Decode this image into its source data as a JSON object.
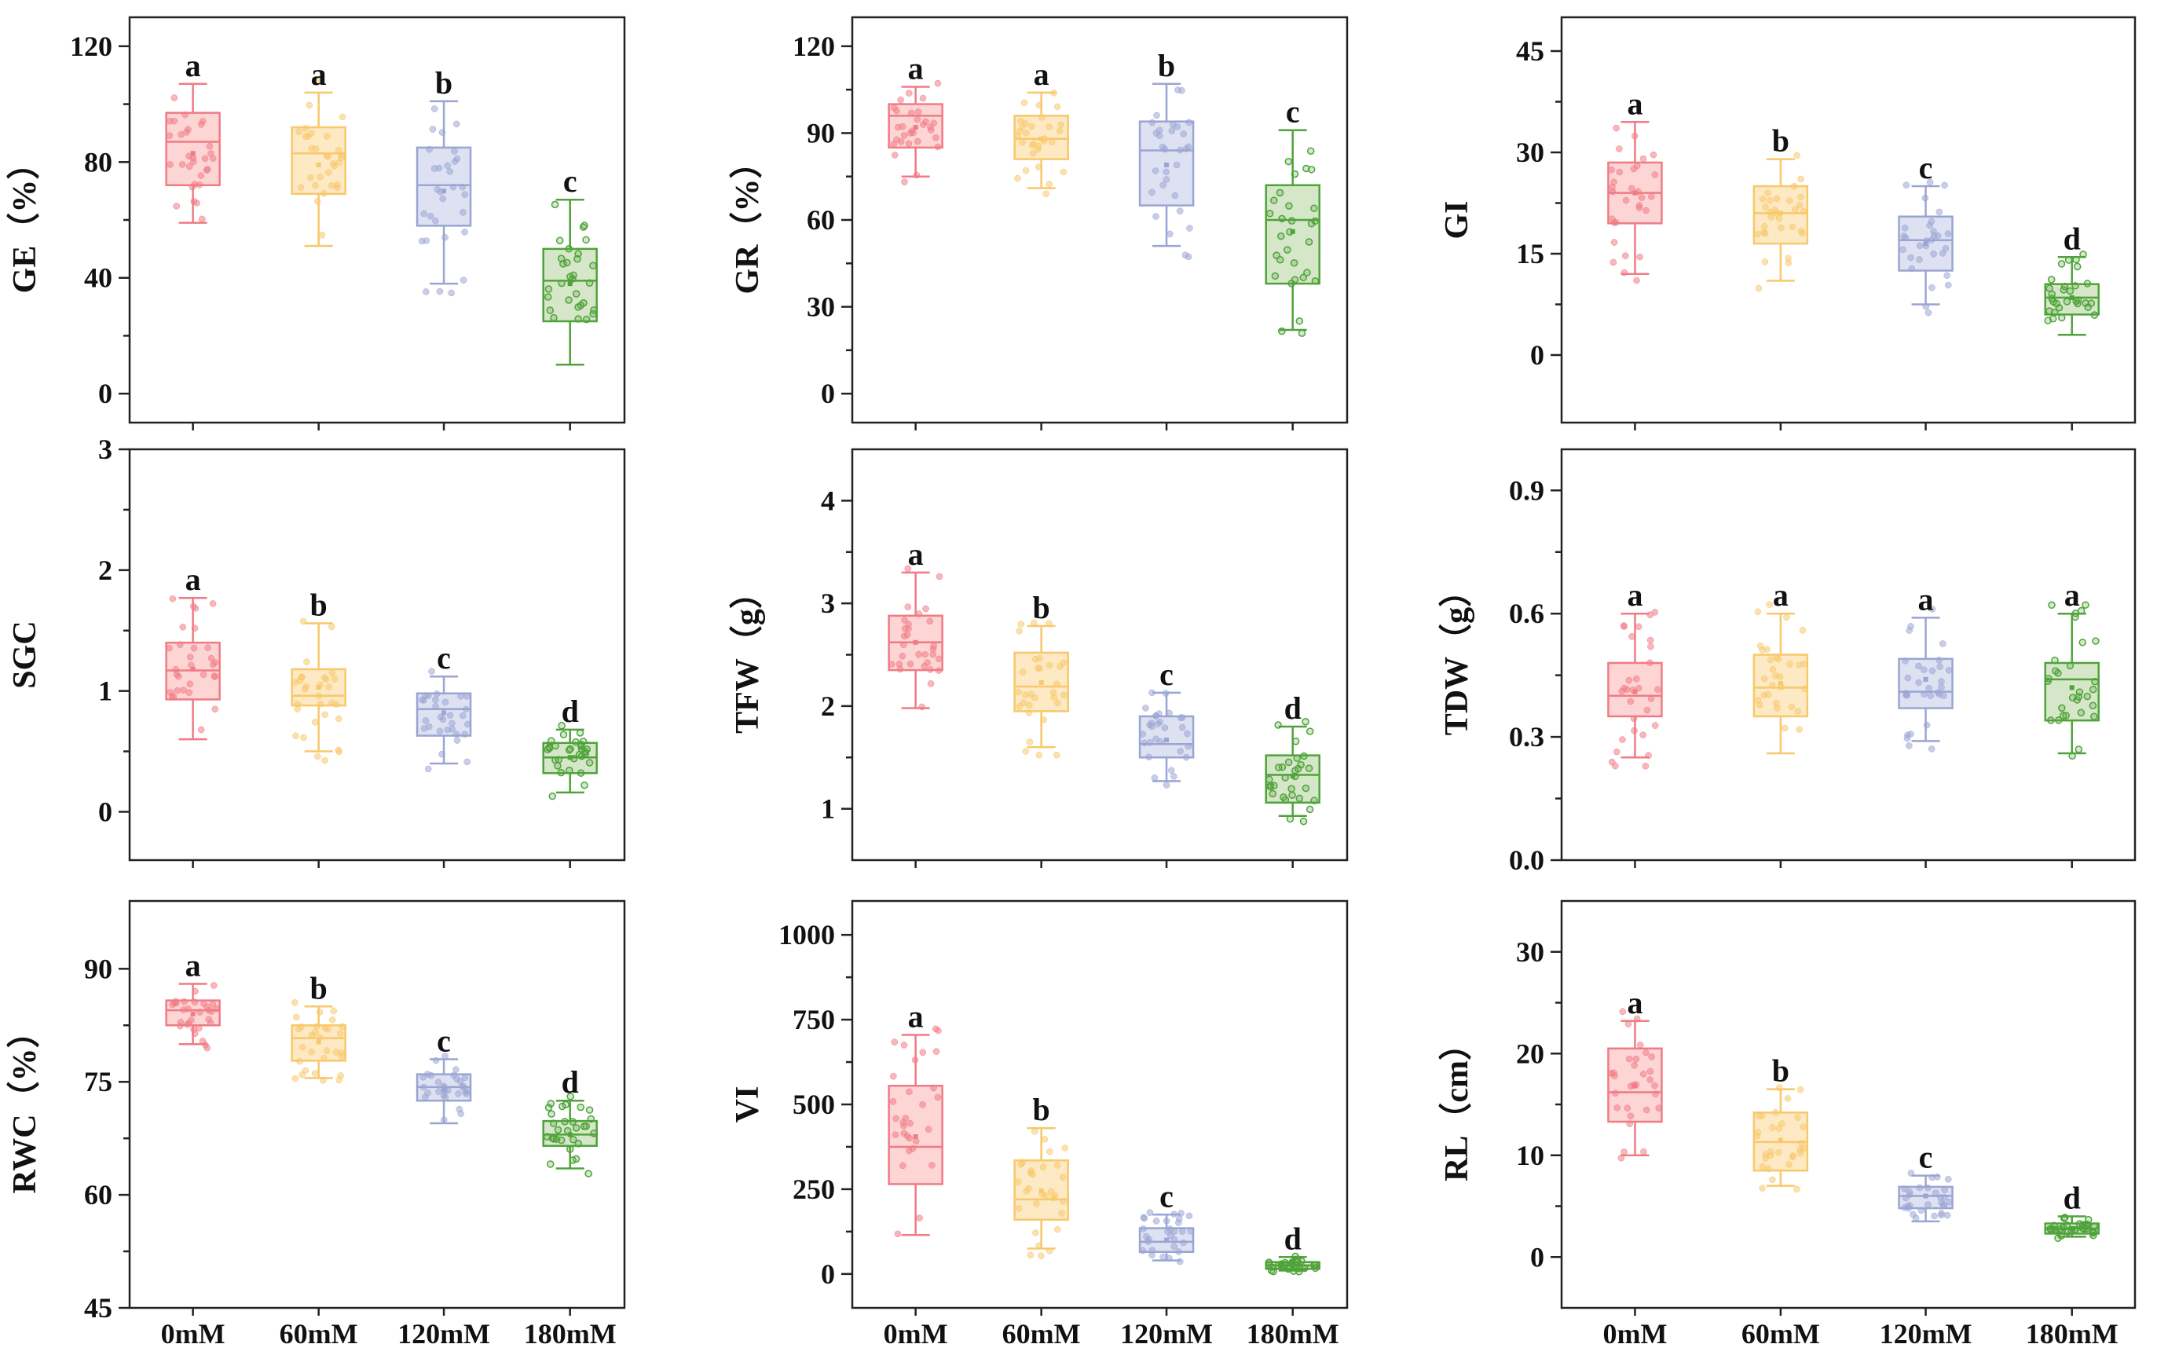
{
  "chart_data": [
    {
      "type": "box",
      "ylabel": "GE（%）",
      "yticks": [
        "0",
        "40",
        "80",
        "120"
      ],
      "ylim": [
        -10,
        130
      ],
      "categories": [
        "0mM",
        "60mM",
        "120mM",
        "180mM"
      ],
      "boxes": [
        {
          "min": 59,
          "q1": 72,
          "median": 87,
          "q3": 97,
          "max": 107,
          "mean": 83,
          "letter": "a"
        },
        {
          "min": 51,
          "q1": 69,
          "median": 83,
          "q3": 92,
          "max": 104,
          "mean": 79,
          "letter": "a"
        },
        {
          "min": 38,
          "q1": 58,
          "median": 72,
          "q3": 85,
          "max": 101,
          "mean": 70,
          "letter": "b"
        },
        {
          "min": 10,
          "q1": 25,
          "median": 39,
          "q3": 50,
          "max": 67,
          "mean": 38,
          "letter": "c"
        }
      ]
    },
    {
      "type": "box",
      "ylabel": "GR（%）",
      "yticks": [
        "0",
        "30",
        "60",
        "90",
        "120"
      ],
      "ylim": [
        -10,
        130
      ],
      "categories": [
        "0mM",
        "60mM",
        "120mM",
        "180mM"
      ],
      "boxes": [
        {
          "min": 75,
          "q1": 85,
          "median": 96,
          "q3": 100,
          "max": 106,
          "mean": 92,
          "letter": "a"
        },
        {
          "min": 71,
          "q1": 81,
          "median": 88,
          "q3": 96,
          "max": 104,
          "mean": 88,
          "letter": "a"
        },
        {
          "min": 51,
          "q1": 65,
          "median": 84,
          "q3": 94,
          "max": 107,
          "mean": 79,
          "letter": "b"
        },
        {
          "min": 22,
          "q1": 38,
          "median": 60,
          "q3": 72,
          "max": 91,
          "mean": 56,
          "letter": "c"
        }
      ]
    },
    {
      "type": "box",
      "ylabel": "GI",
      "yticks": [
        "0",
        "15",
        "30",
        "45"
      ],
      "ylim": [
        -10,
        50
      ],
      "categories": [
        "0mM",
        "60mM",
        "120mM",
        "180mM"
      ],
      "boxes": [
        {
          "min": 12,
          "q1": 19.5,
          "median": 24,
          "q3": 28.5,
          "max": 34.5,
          "mean": 24,
          "letter": "a"
        },
        {
          "min": 11,
          "q1": 16.5,
          "median": 21,
          "q3": 25,
          "max": 29,
          "mean": 21,
          "letter": "b"
        },
        {
          "min": 7.5,
          "q1": 12.5,
          "median": 17,
          "q3": 20.5,
          "max": 25,
          "mean": 16.5,
          "letter": "c"
        },
        {
          "min": 3,
          "q1": 6,
          "median": 8.5,
          "q3": 10.5,
          "max": 14.5,
          "mean": 8.5,
          "letter": "d"
        }
      ]
    },
    {
      "type": "box",
      "ylabel": "SGC",
      "yticks": [
        "0",
        "1",
        "2",
        "3"
      ],
      "ylim": [
        -0.4,
        3
      ],
      "categories": [
        "0mM",
        "60mM",
        "120mM",
        "180mM"
      ],
      "boxes": [
        {
          "min": 0.6,
          "q1": 0.93,
          "median": 1.17,
          "q3": 1.4,
          "max": 1.77,
          "mean": 1.18,
          "letter": "a"
        },
        {
          "min": 0.5,
          "q1": 0.88,
          "median": 0.96,
          "q3": 1.18,
          "max": 1.56,
          "mean": 1.03,
          "letter": "b"
        },
        {
          "min": 0.4,
          "q1": 0.63,
          "median": 0.85,
          "q3": 0.98,
          "max": 1.12,
          "mean": 0.82,
          "letter": "c"
        },
        {
          "min": 0.16,
          "q1": 0.32,
          "median": 0.45,
          "q3": 0.57,
          "max": 0.68,
          "mean": 0.45,
          "letter": "d"
        }
      ]
    },
    {
      "type": "box",
      "ylabel": "TFW（g）",
      "yticks": [
        "1",
        "2",
        "3",
        "4"
      ],
      "ylim": [
        0.5,
        4.5
      ],
      "categories": [
        "0mM",
        "60mM",
        "120mM",
        "180mM"
      ],
      "boxes": [
        {
          "min": 1.98,
          "q1": 2.35,
          "median": 2.62,
          "q3": 2.88,
          "max": 3.3,
          "mean": 2.62,
          "letter": "a"
        },
        {
          "min": 1.6,
          "q1": 1.95,
          "median": 2.19,
          "q3": 2.52,
          "max": 2.78,
          "mean": 2.23,
          "letter": "b"
        },
        {
          "min": 1.27,
          "q1": 1.5,
          "median": 1.63,
          "q3": 1.9,
          "max": 2.13,
          "mean": 1.67,
          "letter": "c"
        },
        {
          "min": 0.93,
          "q1": 1.06,
          "median": 1.33,
          "q3": 1.52,
          "max": 1.8,
          "mean": 1.32,
          "letter": "d"
        }
      ]
    },
    {
      "type": "box",
      "ylabel": "TDW（g）",
      "yticks": [
        "0.0",
        "0.3",
        "0.6",
        "0.9"
      ],
      "ylim": [
        0,
        1
      ],
      "categories": [
        "0mM",
        "60mM",
        "120mM",
        "180mM"
      ],
      "boxes": [
        {
          "min": 0.25,
          "q1": 0.35,
          "median": 0.4,
          "q3": 0.48,
          "max": 0.6,
          "mean": 0.41,
          "letter": "a"
        },
        {
          "min": 0.26,
          "q1": 0.35,
          "median": 0.42,
          "q3": 0.5,
          "max": 0.6,
          "mean": 0.43,
          "letter": "a"
        },
        {
          "min": 0.29,
          "q1": 0.37,
          "median": 0.41,
          "q3": 0.49,
          "max": 0.59,
          "mean": 0.44,
          "letter": "a"
        },
        {
          "min": 0.26,
          "q1": 0.34,
          "median": 0.44,
          "q3": 0.48,
          "max": 0.6,
          "mean": 0.42,
          "letter": "a"
        }
      ]
    },
    {
      "type": "box",
      "ylabel": "RWC（%）",
      "yticks": [
        "45",
        "60",
        "75",
        "90"
      ],
      "ylim": [
        45,
        99
      ],
      "categories": [
        "0mM",
        "60mM",
        "120mM",
        "180mM"
      ],
      "boxes": [
        {
          "min": 80,
          "q1": 82.5,
          "median": 84.5,
          "q3": 85.8,
          "max": 88,
          "mean": 84,
          "letter": "a"
        },
        {
          "min": 75.5,
          "q1": 77.8,
          "median": 80.8,
          "q3": 82.5,
          "max": 85,
          "mean": 80.3,
          "letter": "b"
        },
        {
          "min": 69.5,
          "q1": 72.5,
          "median": 74.3,
          "q3": 76,
          "max": 78,
          "mean": 74,
          "letter": "c"
        },
        {
          "min": 63.5,
          "q1": 66.5,
          "median": 68,
          "q3": 69.8,
          "max": 72.5,
          "mean": 68,
          "letter": "d"
        }
      ]
    },
    {
      "type": "box",
      "ylabel": "VI",
      "yticks": [
        "0",
        "250",
        "500",
        "750",
        "1000"
      ],
      "ylim": [
        -100,
        1100
      ],
      "categories": [
        "0mM",
        "60mM",
        "120mM",
        "180mM"
      ],
      "boxes": [
        {
          "min": 115,
          "q1": 265,
          "median": 375,
          "q3": 555,
          "max": 705,
          "mean": 405,
          "letter": "a"
        },
        {
          "min": 75,
          "q1": 160,
          "median": 220,
          "q3": 335,
          "max": 430,
          "mean": 245,
          "letter": "b"
        },
        {
          "min": 40,
          "q1": 65,
          "median": 95,
          "q3": 135,
          "max": 175,
          "mean": 100,
          "letter": "c"
        },
        {
          "min": 10,
          "q1": 15,
          "median": 25,
          "q3": 35,
          "max": 50,
          "mean": 26,
          "letter": "d"
        }
      ]
    },
    {
      "type": "box",
      "ylabel": "RL（cm）",
      "yticks": [
        "0",
        "10",
        "20",
        "30"
      ],
      "ylim": [
        -5,
        35
      ],
      "categories": [
        "0mM",
        "60mM",
        "120mM",
        "180mM"
      ],
      "boxes": [
        {
          "min": 10,
          "q1": 13.3,
          "median": 16.2,
          "q3": 20.5,
          "max": 23.2,
          "mean": 16.8,
          "letter": "a"
        },
        {
          "min": 7,
          "q1": 8.5,
          "median": 11.3,
          "q3": 14.2,
          "max": 16.5,
          "mean": 11.5,
          "letter": "b"
        },
        {
          "min": 3.5,
          "q1": 4.8,
          "median": 6,
          "q3": 6.9,
          "max": 8,
          "mean": 6,
          "letter": "c"
        },
        {
          "min": 2,
          "q1": 2.3,
          "median": 2.8,
          "q3": 3.3,
          "max": 4,
          "mean": 2.8,
          "letter": "d"
        }
      ]
    }
  ],
  "colors": {
    "series": [
      "#f07b85",
      "#f8c86a",
      "#9aa5d3",
      "#4fa33a"
    ],
    "fills": [
      "#fcd5d4",
      "#fde9c4",
      "#dde1f1",
      "#d6e6c8"
    ]
  }
}
